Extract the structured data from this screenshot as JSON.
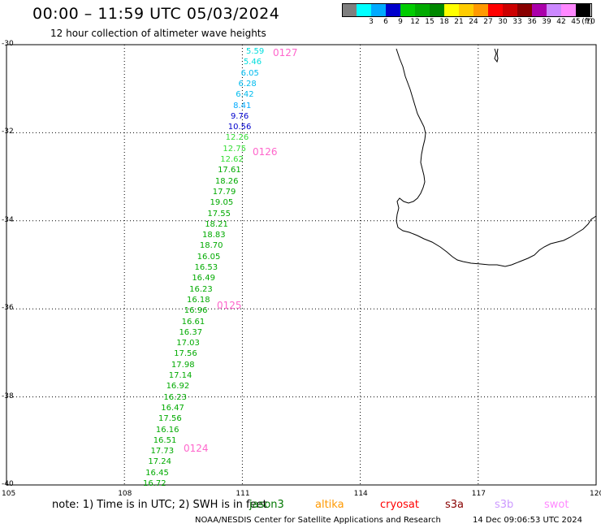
{
  "header": {
    "title": "00:00 – 11:59 UTC 05/03/2024",
    "subtitle": "12 hour collection of altimeter wave heights"
  },
  "legend": {
    "unit_label": "(ft)",
    "swatches": [
      {
        "color": "#7f7f7f",
        "label": ""
      },
      {
        "color": "#00ffff",
        "label": "3"
      },
      {
        "color": "#00aaff",
        "label": "6"
      },
      {
        "color": "#0000cc",
        "label": "9"
      },
      {
        "color": "#00cc00",
        "label": "12"
      },
      {
        "color": "#00aa00",
        "label": "15"
      },
      {
        "color": "#008800",
        "label": "18"
      },
      {
        "color": "#ffff00",
        "label": "21"
      },
      {
        "color": "#ffcc00",
        "label": "24"
      },
      {
        "color": "#ff9900",
        "label": "27"
      },
      {
        "color": "#ff0000",
        "label": "30"
      },
      {
        "color": "#cc0000",
        "label": "33"
      },
      {
        "color": "#880000",
        "label": "36"
      },
      {
        "color": "#aa00aa",
        "label": "39"
      },
      {
        "color": "#cc88ff",
        "label": "42"
      },
      {
        "color": "#ff88ff",
        "label": "45"
      },
      {
        "color": "#000000",
        "label": "70"
      }
    ]
  },
  "axes": {
    "lat_labels": [
      "-30",
      "-32",
      "-34",
      "-36",
      "-38",
      "-40"
    ],
    "lon_labels": [
      "105",
      "108",
      "111",
      "114",
      "117",
      "120"
    ]
  },
  "track": {
    "pass_labels": [
      "0127",
      "0126",
      "0125",
      "0124"
    ],
    "pass_color": "#ff66cc",
    "values": [
      "5.59",
      "5.46",
      "6.05",
      "6.28",
      "6.42",
      "8.41",
      "9.76",
      "10.56",
      "12.26",
      "12.75",
      "12.62",
      "17.61",
      "18.26",
      "17.79",
      "19.05",
      "17.55",
      "18.21",
      "18.83",
      "18.70",
      "16.05",
      "16.53",
      "16.49",
      "16.23",
      "16.18",
      "16.96",
      "16.61",
      "16.37",
      "17.03",
      "17.56",
      "17.98",
      "17.14",
      "16.92",
      "16.23",
      "16.47",
      "17.56",
      "16.16",
      "16.51",
      "17.73",
      "17.24",
      "16.45",
      "16.72"
    ],
    "colors": [
      "#00dddd",
      "#00dddd",
      "#00bbee",
      "#00bbee",
      "#00bbee",
      "#00aaff",
      "#0000cc",
      "#0000cc",
      "#33dd33",
      "#33dd33",
      "#33dd33",
      "#00aa00",
      "#00aa00",
      "#00aa00",
      "#00aa00",
      "#00aa00",
      "#00aa00",
      "#00aa00",
      "#00aa00",
      "#00aa00",
      "#00aa00",
      "#00aa00",
      "#00aa00",
      "#00aa00",
      "#00aa00",
      "#00aa00",
      "#00aa00",
      "#00aa00",
      "#00aa00",
      "#00aa00",
      "#00aa00",
      "#00aa00",
      "#00aa00",
      "#00aa00",
      "#00aa00",
      "#00aa00",
      "#00aa00",
      "#00aa00",
      "#00aa00",
      "#00aa00",
      "#00aa00"
    ]
  },
  "footer": {
    "note": "note: 1) Time is in UTC; 2) SWH is in feet",
    "satellites": [
      {
        "name": "jason3",
        "color": "#007700"
      },
      {
        "name": "altika",
        "color": "#ff9900"
      },
      {
        "name": "cryosat",
        "color": "#ff0000"
      },
      {
        "name": "s3a",
        "color": "#880000"
      },
      {
        "name": "s3b",
        "color": "#cc99ff"
      },
      {
        "name": "swot",
        "color": "#ff88ff"
      }
    ],
    "credit": "NOAA/NESDIS Center for Satellite Applications and Research",
    "timestamp": "14 Dec 09:06:53 UTC 2024"
  }
}
